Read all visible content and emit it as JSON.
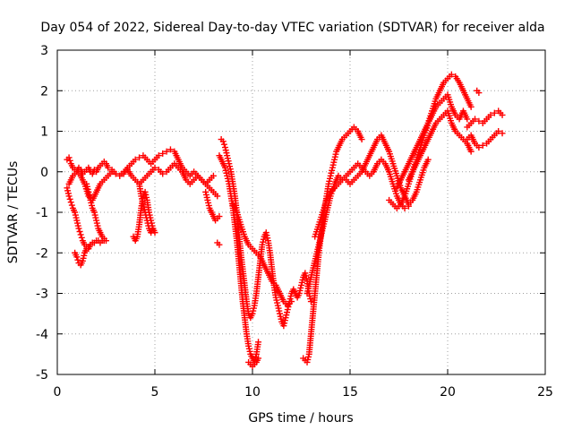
{
  "chart_data": {
    "type": "scatter",
    "title": "Day 054 of 2022, Sidereal Day-to-day VTEC variation (SDTVAR) for receiver alda",
    "xlabel": "GPS time / hours",
    "ylabel": "SDTVAR / TECUs",
    "xlim": [
      0,
      25
    ],
    "ylim": [
      -5,
      3
    ],
    "xticks": [
      "0",
      "5",
      "10",
      "15",
      "20",
      "25"
    ],
    "yticks": [
      "-5",
      "-4",
      "-3",
      "-2",
      "-1",
      "0",
      "1",
      "2",
      "3"
    ],
    "grid": true,
    "marker": "plus",
    "series_color": "#ff0000",
    "series": [
      {
        "x": [
          0.5,
          0.6,
          0.7,
          0.8,
          0.9,
          1.0,
          1.1,
          1.2,
          1.3,
          1.4,
          1.5,
          1.6,
          1.7,
          1.8,
          1.9,
          2.0,
          2.1,
          2.2,
          2.3,
          2.4,
          2.5,
          2.6,
          2.8,
          3.0,
          3.2,
          3.4,
          3.6,
          3.8,
          4.0,
          4.2,
          4.4,
          4.6,
          4.8,
          5.0,
          5.2,
          5.4,
          5.6,
          5.8,
          6.0,
          6.2,
          6.4,
          6.6,
          6.8,
          7.0,
          7.2,
          7.4,
          7.6,
          7.8,
          8.0
        ],
        "y": [
          0.3,
          0.35,
          0.2,
          0.1,
          0.05,
          0.0,
          0.1,
          0.05,
          -0.05,
          0.0,
          0.05,
          0.1,
          0.0,
          -0.05,
          0.05,
          0.0,
          0.1,
          0.15,
          0.2,
          0.25,
          0.2,
          0.1,
          0.05,
          -0.05,
          -0.1,
          -0.05,
          0.1,
          0.2,
          0.3,
          0.35,
          0.4,
          0.3,
          0.2,
          0.3,
          0.4,
          0.45,
          0.5,
          0.55,
          0.5,
          0.3,
          0.1,
          0.0,
          -0.1,
          0.0,
          -0.1,
          -0.2,
          -0.3,
          -0.2,
          -0.1
        ]
      },
      {
        "x": [
          0.5,
          0.6,
          0.7,
          0.8,
          0.9,
          1.0,
          1.1,
          1.2,
          1.3,
          1.4,
          1.5,
          1.6,
          1.7,
          1.8,
          1.9,
          2.0,
          2.1,
          2.2,
          2.3,
          2.4
        ],
        "y": [
          -0.4,
          -0.6,
          -0.75,
          -0.9,
          -1.0,
          -1.2,
          -1.4,
          -1.55,
          -1.7,
          -1.8,
          -1.85,
          -1.9,
          -1.8,
          -1.75,
          -1.75,
          -1.7,
          -1.7,
          -1.75,
          -1.7,
          -1.7
        ]
      },
      {
        "x": [
          0.9,
          1.0,
          1.1,
          1.2,
          1.3,
          1.4,
          1.5,
          1.6
        ],
        "y": [
          -2.0,
          -2.1,
          -2.25,
          -2.3,
          -2.2,
          -2.0,
          -1.9,
          -1.85
        ]
      },
      {
        "x": [
          0.6,
          0.8,
          1.0,
          1.2,
          1.4,
          1.6,
          1.8,
          2.0,
          2.2,
          2.4,
          2.6,
          2.8,
          3.0,
          3.2,
          3.4,
          3.6,
          3.8,
          4.0,
          4.2,
          4.4,
          4.6,
          4.8,
          5.0,
          5.2,
          5.4,
          5.6,
          5.8,
          6.0,
          6.2,
          6.4,
          6.6,
          6.8,
          7.0,
          7.2,
          7.4,
          7.6,
          7.8,
          8.0,
          8.2
        ],
        "y": [
          -0.3,
          -0.1,
          0.0,
          -0.1,
          -0.3,
          -0.6,
          -0.7,
          -0.5,
          -0.3,
          -0.2,
          -0.1,
          0.0,
          -0.05,
          -0.1,
          0.0,
          0.05,
          -0.1,
          -0.2,
          -0.3,
          -0.2,
          -0.1,
          0.0,
          0.1,
          0.05,
          -0.05,
          0.0,
          0.1,
          0.2,
          0.1,
          0.0,
          -0.2,
          -0.3,
          -0.2,
          -0.1,
          -0.2,
          -0.3,
          -0.4,
          -0.5,
          -0.6
        ]
      },
      {
        "x": [
          1.5,
          1.6,
          1.7,
          1.8,
          1.9,
          2.0,
          2.1,
          2.2,
          2.3,
          2.4,
          2.5
        ],
        "y": [
          -0.3,
          -0.5,
          -0.7,
          -0.9,
          -1.0,
          -1.2,
          -1.4,
          -1.5,
          -1.6,
          -1.65,
          -1.7
        ]
      },
      {
        "x": [
          3.9,
          4.0,
          4.1,
          4.2,
          4.3,
          4.4,
          4.5,
          4.6,
          4.7,
          4.8,
          4.9,
          5.0
        ],
        "y": [
          -1.6,
          -1.7,
          -1.6,
          -1.3,
          -0.9,
          -0.6,
          -0.5,
          -0.7,
          -1.0,
          -1.2,
          -1.4,
          -1.5
        ]
      },
      {
        "x": [
          4.2,
          4.3,
          4.4,
          4.5,
          4.6,
          4.7,
          4.8,
          4.9
        ],
        "y": [
          -0.3,
          -0.6,
          -0.8,
          -1.0,
          -1.2,
          -1.4,
          -1.5,
          -1.4
        ]
      },
      {
        "x": [
          7.6,
          7.7,
          7.8,
          7.9,
          8.0,
          8.1,
          8.2,
          8.3
        ],
        "y": [
          -0.5,
          -0.7,
          -0.9,
          -1.0,
          -1.1,
          -1.2,
          -1.15,
          -1.1
        ]
      },
      {
        "x": [
          8.2,
          8.3
        ],
        "y": [
          -1.75,
          -1.8
        ]
      },
      {
        "x": [
          8.4,
          8.5,
          8.6,
          8.7,
          8.8,
          8.9,
          9.0,
          9.1,
          9.2,
          9.3,
          9.4,
          9.5,
          9.6,
          9.7,
          9.8,
          9.9,
          10.0,
          10.1,
          10.2,
          10.3,
          10.4,
          10.5,
          10.6,
          10.7,
          10.8,
          10.9,
          11.0,
          11.1,
          11.2,
          11.3,
          11.4,
          11.5,
          11.6,
          11.7,
          11.8,
          11.9,
          12.0,
          12.1,
          12.2,
          12.3,
          12.4,
          12.5,
          12.6,
          12.7,
          12.8,
          12.9,
          13.0
        ],
        "y": [
          0.8,
          0.75,
          0.6,
          0.4,
          0.2,
          0.0,
          -0.3,
          -0.6,
          -1.0,
          -1.5,
          -2.0,
          -2.4,
          -2.8,
          -3.2,
          -3.5,
          -3.6,
          -3.5,
          -3.3,
          -3.0,
          -2.6,
          -2.2,
          -1.8,
          -1.6,
          -1.5,
          -1.7,
          -2.0,
          -2.4,
          -2.8,
          -3.1,
          -3.3,
          -3.5,
          -3.7,
          -3.8,
          -3.6,
          -3.4,
          -3.2,
          -3.0,
          -2.9,
          -3.0,
          -3.1,
          -3.0,
          -2.8,
          -2.6,
          -2.5,
          -2.7,
          -3.0,
          -3.2
        ]
      },
      {
        "x": [
          8.3,
          8.4,
          8.5,
          8.6,
          8.7,
          8.8,
          8.9,
          9.0,
          9.1,
          9.2,
          9.3,
          9.4,
          9.5,
          9.6,
          9.7,
          9.8,
          9.9,
          10.0,
          10.1,
          10.2,
          10.3
        ],
        "y": [
          0.4,
          0.3,
          0.2,
          0.1,
          -0.1,
          -0.3,
          -0.6,
          -0.9,
          -1.3,
          -1.7,
          -2.2,
          -2.7,
          -3.2,
          -3.6,
          -4.0,
          -4.3,
          -4.5,
          -4.6,
          -4.7,
          -4.5,
          -4.2
        ]
      },
      {
        "x": [
          9.8,
          9.9,
          10.0,
          10.1,
          10.2,
          10.3
        ],
        "y": [
          -4.7,
          -4.75,
          -4.8,
          -4.75,
          -4.7,
          -4.6
        ]
      },
      {
        "x": [
          9.0,
          9.2,
          9.4,
          9.6,
          9.8,
          10.0,
          10.2,
          10.4,
          10.6,
          10.8,
          11.0,
          11.2,
          11.4,
          11.6,
          11.8,
          12.0
        ],
        "y": [
          -0.8,
          -1.0,
          -1.3,
          -1.6,
          -1.8,
          -1.9,
          -2.0,
          -2.1,
          -2.3,
          -2.5,
          -2.7,
          -2.8,
          -3.0,
          -3.2,
          -3.3,
          -3.2
        ]
      },
      {
        "x": [
          12.6,
          12.7,
          12.8,
          12.9,
          13.0,
          13.1,
          13.2,
          13.3,
          13.4,
          13.5,
          13.6,
          13.7,
          13.8,
          13.9,
          14.0,
          14.1,
          14.2,
          14.3,
          14.4,
          14.5,
          14.6,
          14.7,
          14.8,
          14.9,
          15.0,
          15.1,
          15.2,
          15.3,
          15.4,
          15.5,
          15.6
        ],
        "y": [
          -4.6,
          -4.65,
          -4.7,
          -4.5,
          -4.0,
          -3.5,
          -3.0,
          -2.5,
          -2.0,
          -1.6,
          -1.2,
          -0.9,
          -0.6,
          -0.3,
          -0.1,
          0.1,
          0.3,
          0.5,
          0.6,
          0.7,
          0.8,
          0.85,
          0.9,
          0.95,
          1.0,
          1.05,
          1.1,
          1.05,
          1.0,
          0.9,
          0.8
        ]
      },
      {
        "x": [
          12.8,
          13.0,
          13.2,
          13.4,
          13.6,
          13.8,
          14.0,
          14.2,
          14.4,
          14.6,
          14.8,
          15.0,
          15.2,
          15.4,
          15.6,
          15.8,
          16.0,
          16.2,
          16.4,
          16.6,
          16.8,
          17.0,
          17.2,
          17.4,
          17.6,
          17.8,
          18.0,
          18.2,
          18.4,
          18.6,
          18.8,
          19.0
        ],
        "y": [
          -3.0,
          -2.6,
          -2.2,
          -1.8,
          -1.4,
          -1.0,
          -0.6,
          -0.3,
          -0.1,
          -0.2,
          -0.2,
          -0.3,
          -0.2,
          -0.1,
          0.0,
          0.2,
          0.4,
          0.6,
          0.8,
          0.9,
          0.7,
          0.5,
          0.2,
          -0.1,
          -0.4,
          -0.6,
          -0.8,
          -0.7,
          -0.5,
          -0.2,
          0.1,
          0.3
        ]
      },
      {
        "x": [
          13.2,
          13.4,
          13.6,
          13.8,
          14.0,
          14.2,
          14.4,
          14.6,
          14.8,
          15.0,
          15.2,
          15.4,
          15.6,
          15.8,
          16.0,
          16.2,
          16.4,
          16.6,
          16.8,
          17.0,
          17.2,
          17.4,
          17.6,
          17.8,
          18.0
        ],
        "y": [
          -1.6,
          -1.3,
          -1.0,
          -0.7,
          -0.5,
          -0.4,
          -0.3,
          -0.2,
          -0.1,
          0.0,
          0.1,
          0.2,
          0.1,
          0.0,
          -0.1,
          0.0,
          0.2,
          0.3,
          0.2,
          0.0,
          -0.3,
          -0.6,
          -0.8,
          -0.9,
          -0.85
        ]
      },
      {
        "x": [
          17.0,
          17.2,
          17.4,
          17.6,
          17.8,
          18.0,
          18.2,
          18.4,
          18.6,
          18.8,
          19.0,
          19.2,
          19.4,
          19.6,
          19.8,
          20.0,
          20.2,
          20.4,
          20.6,
          20.8,
          21.0,
          21.2
        ],
        "y": [
          -0.7,
          -0.8,
          -0.9,
          -0.8,
          -0.6,
          -0.3,
          0.0,
          0.3,
          0.6,
          0.9,
          1.2,
          1.5,
          1.8,
          2.0,
          2.2,
          2.3,
          2.4,
          2.35,
          2.2,
          2.0,
          1.8,
          1.6
        ]
      },
      {
        "x": [
          17.4,
          17.6,
          17.8,
          18.0,
          18.2,
          18.4,
          18.6,
          18.8,
          19.0,
          19.2,
          19.4,
          19.6,
          19.8,
          20.0,
          20.2,
          20.4,
          20.6,
          20.8,
          21.0
        ],
        "y": [
          -0.4,
          -0.2,
          0.0,
          0.2,
          0.4,
          0.6,
          0.8,
          1.0,
          1.2,
          1.4,
          1.6,
          1.7,
          1.8,
          1.9,
          1.6,
          1.4,
          1.3,
          1.5,
          1.3
        ]
      },
      {
        "x": [
          18.0,
          18.2,
          18.4,
          18.6,
          18.8,
          19.0,
          19.2,
          19.4,
          19.6,
          19.8,
          20.0,
          20.2,
          20.4,
          20.6,
          20.8,
          21.0,
          21.2
        ],
        "y": [
          -0.2,
          0.0,
          0.2,
          0.4,
          0.6,
          0.8,
          1.0,
          1.2,
          1.3,
          1.4,
          1.5,
          1.2,
          1.0,
          0.9,
          0.8,
          0.7,
          0.5
        ]
      },
      {
        "x": [
          21.0,
          21.2,
          21.4,
          21.6,
          21.8,
          22.0,
          22.2,
          22.4,
          22.6,
          22.8
        ],
        "y": [
          0.8,
          0.9,
          0.7,
          0.6,
          0.65,
          0.7,
          0.8,
          0.9,
          1.0,
          0.95
        ]
      },
      {
        "x": [
          21.0,
          21.2,
          21.4,
          21.6,
          21.8,
          22.0,
          22.2,
          22.4,
          22.6,
          22.8
        ],
        "y": [
          1.1,
          1.2,
          1.3,
          1.25,
          1.2,
          1.3,
          1.4,
          1.45,
          1.5,
          1.4
        ]
      },
      {
        "x": [
          21.5,
          21.6
        ],
        "y": [
          2.0,
          1.95
        ]
      }
    ]
  }
}
